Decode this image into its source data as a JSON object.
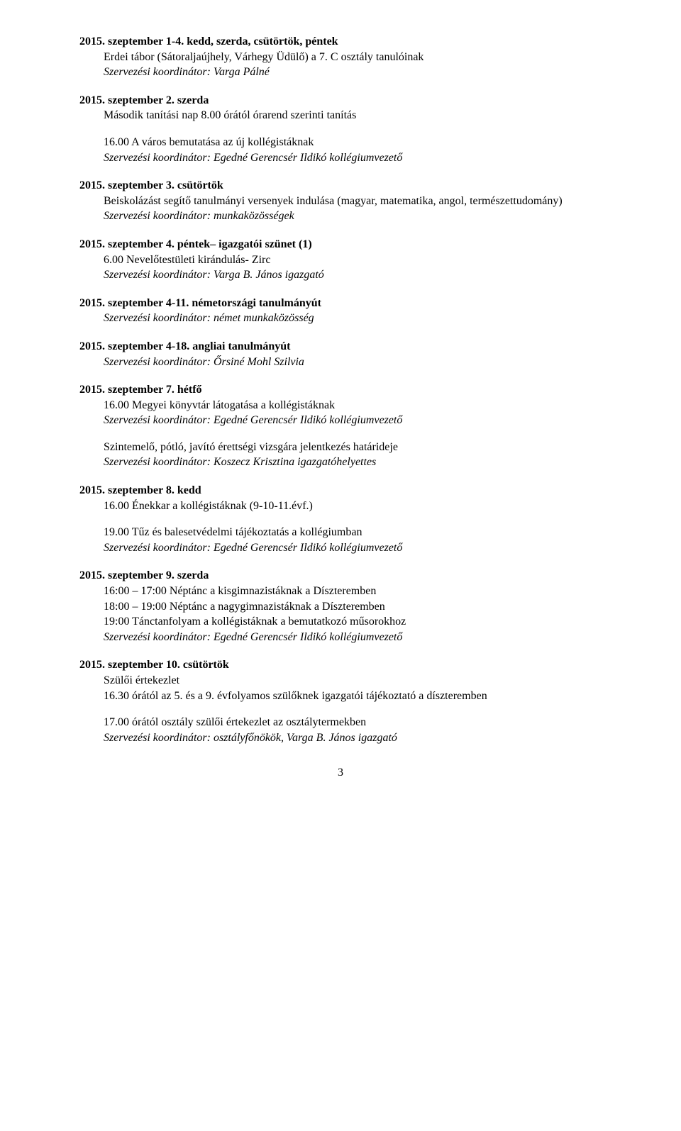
{
  "entries": [
    {
      "date": "2015. szeptember 1-4. kedd, szerda, csütörtök, péntek",
      "lines": [
        {
          "text": "Erdei tábor (Sátoraljaújhely, Várhegy Üdülő) a 7. C osztály tanulóinak",
          "italic": false
        },
        {
          "text": "Szervezési koordinátor: Varga Pálné",
          "italic": true
        }
      ]
    },
    {
      "date": "2015. szeptember 2. szerda",
      "lines": [
        {
          "text": "Második tanítási nap 8.00 órától órarend szerinti tanítás",
          "italic": false
        }
      ],
      "sub": [
        {
          "text": "16.00 A város bemutatása az új kollégistáknak",
          "italic": false
        },
        {
          "text": "Szervezési koordinátor: Egedné Gerencsér Ildikó kollégiumvezető",
          "italic": true
        }
      ]
    },
    {
      "date": "2015. szeptember 3. csütörtök",
      "lines": [
        {
          "text": "Beiskolázást segítő tanulmányi versenyek indulása (magyar, matematika, angol, természettudomány)",
          "italic": false,
          "justify": true
        },
        {
          "text": "Szervezési koordinátor: munkaközösségek",
          "italic": true
        }
      ]
    },
    {
      "date": "2015. szeptember 4. péntek– igazgatói szünet (1)",
      "lines": [
        {
          "text": "6.00 Nevelőtestületi kirándulás- Zirc",
          "italic": false
        },
        {
          "text": "Szervezési koordinátor: Varga B. János igazgató",
          "italic": true
        }
      ]
    },
    {
      "date": "2015. szeptember 4-11. németországi tanulmányút",
      "lines": [
        {
          "text": "Szervezési koordinátor: német munkaközösség",
          "italic": true
        }
      ]
    },
    {
      "date": "2015. szeptember 4-18. angliai tanulmányút",
      "lines": [
        {
          "text": "Szervezési koordinátor: Őrsiné Mohl Szilvia",
          "italic": true
        }
      ]
    },
    {
      "date": "2015. szeptember 7. hétfő",
      "lines": [
        {
          "text": "16.00 Megyei könyvtár látogatása a kollégistáknak",
          "italic": false
        },
        {
          "text": "Szervezési koordinátor: Egedné Gerencsér Ildikó kollégiumvezető",
          "italic": true
        }
      ],
      "sub": [
        {
          "text": "Szintemelő, pótló, javító érettségi vizsgára jelentkezés határideje",
          "italic": false
        },
        {
          "text": "Szervezési koordinátor: Koszecz Krisztina igazgatóhelyettes",
          "italic": true
        }
      ]
    },
    {
      "date": "2015. szeptember 8. kedd",
      "lines": [
        {
          "text": "16.00 Énekkar a kollégistáknak (9-10-11.évf.)",
          "italic": false
        }
      ],
      "sub": [
        {
          "text": "19.00 Tűz és balesetvédelmi tájékoztatás a kollégiumban",
          "italic": false
        },
        {
          "text": "Szervezési koordinátor: Egedné Gerencsér Ildikó kollégiumvezető",
          "italic": true
        }
      ]
    },
    {
      "date": "2015. szeptember 9. szerda",
      "lines": [
        {
          "text": "16:00 – 17:00 Néptánc a kisgimnazistáknak a  Díszteremben",
          "italic": false
        },
        {
          "text": "18:00 – 19:00 Néptánc a nagygimnazistáknak a  Díszteremben",
          "italic": false
        },
        {
          "text": "19:00 Tánctanfolyam a kollégistáknak a bemutatkozó műsorokhoz",
          "italic": false
        },
        {
          "text": "Szervezési koordinátor: Egedné Gerencsér Ildikó kollégiumvezető",
          "italic": true
        }
      ]
    },
    {
      "date": "2015. szeptember 10. csütörtök",
      "lines": [
        {
          "text": "Szülői értekezlet",
          "italic": false
        },
        {
          "text": "16.30 órától az 5. és a 9. évfolyamos szülőknek igazgatói tájékoztató a díszteremben",
          "italic": false
        }
      ],
      "sub": [
        {
          "text": "17.00 órától osztály szülői értekezlet az osztálytermekben",
          "italic": false
        },
        {
          "text": "Szervezési koordinátor: osztályfőnökök, Varga B. János  igazgató",
          "italic": true
        }
      ]
    }
  ],
  "pageNumber": "3"
}
